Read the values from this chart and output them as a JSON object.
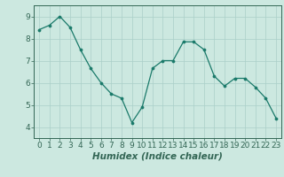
{
  "x": [
    0,
    1,
    2,
    3,
    4,
    5,
    6,
    7,
    8,
    9,
    10,
    11,
    12,
    13,
    14,
    15,
    16,
    17,
    18,
    19,
    20,
    21,
    22,
    23
  ],
  "y": [
    8.4,
    8.6,
    9.0,
    8.5,
    7.5,
    6.65,
    6.0,
    5.5,
    5.3,
    4.2,
    4.9,
    6.65,
    7.0,
    7.0,
    7.85,
    7.85,
    7.5,
    6.3,
    5.85,
    6.2,
    6.2,
    5.8,
    5.3,
    4.4
  ],
  "line_color": "#1a7a6a",
  "marker": "o",
  "marker_size": 2.2,
  "bg_color": "#cce8e0",
  "grid_color": "#aacfc8",
  "xlabel": "Humidex (Indice chaleur)",
  "ylim": [
    3.5,
    9.5
  ],
  "xlim": [
    -0.5,
    23.5
  ],
  "yticks": [
    4,
    5,
    6,
    7,
    8,
    9
  ],
  "xticks": [
    0,
    1,
    2,
    3,
    4,
    5,
    6,
    7,
    8,
    9,
    10,
    11,
    12,
    13,
    14,
    15,
    16,
    17,
    18,
    19,
    20,
    21,
    22,
    23
  ],
  "xlabel_fontsize": 7.5,
  "tick_fontsize": 6.5,
  "spine_color": "#336655"
}
